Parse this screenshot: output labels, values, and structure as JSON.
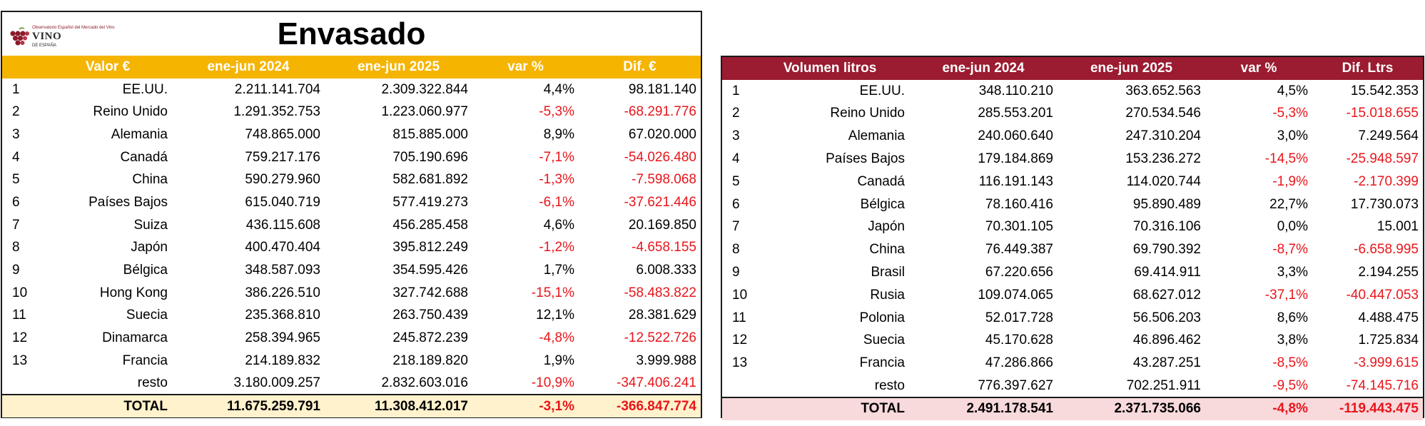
{
  "title": "Envasado",
  "logo": {
    "top_text": "Observatorio Español del Mercado del Vino",
    "main_text": "VINO",
    "sub_text": "DE ESPAÑA",
    "color": "#8a1c2b"
  },
  "colors": {
    "left_header": "#f5b400",
    "left_total": "#fff2cc",
    "right_header": "#9b1b30",
    "right_total": "#f8d9dc",
    "negative": "#e8161b"
  },
  "valor": {
    "headers": [
      "",
      "Valor €",
      "ene-jun 2024",
      "ene-jun 2025",
      "var %",
      "Dif. €"
    ],
    "rows": [
      {
        "rank": "1",
        "name": "EE.UU.",
        "y2024": "2.211.141.704",
        "y2025": "2.309.322.844",
        "var": "4,4%",
        "dif": "98.181.140",
        "neg": false
      },
      {
        "rank": "2",
        "name": "Reino Unido",
        "y2024": "1.291.352.753",
        "y2025": "1.223.060.977",
        "var": "-5,3%",
        "dif": "-68.291.776",
        "neg": true
      },
      {
        "rank": "3",
        "name": "Alemania",
        "y2024": "748.865.000",
        "y2025": "815.885.000",
        "var": "8,9%",
        "dif": "67.020.000",
        "neg": false
      },
      {
        "rank": "4",
        "name": "Canadá",
        "y2024": "759.217.176",
        "y2025": "705.190.696",
        "var": "-7,1%",
        "dif": "-54.026.480",
        "neg": true
      },
      {
        "rank": "5",
        "name": "China",
        "y2024": "590.279.960",
        "y2025": "582.681.892",
        "var": "-1,3%",
        "dif": "-7.598.068",
        "neg": true
      },
      {
        "rank": "6",
        "name": "Países Bajos",
        "y2024": "615.040.719",
        "y2025": "577.419.273",
        "var": "-6,1%",
        "dif": "-37.621.446",
        "neg": true
      },
      {
        "rank": "7",
        "name": "Suiza",
        "y2024": "436.115.608",
        "y2025": "456.285.458",
        "var": "4,6%",
        "dif": "20.169.850",
        "neg": false
      },
      {
        "rank": "8",
        "name": "Japón",
        "y2024": "400.470.404",
        "y2025": "395.812.249",
        "var": "-1,2%",
        "dif": "-4.658.155",
        "neg": true
      },
      {
        "rank": "9",
        "name": "Bélgica",
        "y2024": "348.587.093",
        "y2025": "354.595.426",
        "var": "1,7%",
        "dif": "6.008.333",
        "neg": false
      },
      {
        "rank": "10",
        "name": "Hong Kong",
        "y2024": "386.226.510",
        "y2025": "327.742.688",
        "var": "-15,1%",
        "dif": "-58.483.822",
        "neg": true
      },
      {
        "rank": "11",
        "name": "Suecia",
        "y2024": "235.368.810",
        "y2025": "263.750.439",
        "var": "12,1%",
        "dif": "28.381.629",
        "neg": false
      },
      {
        "rank": "12",
        "name": "Dinamarca",
        "y2024": "258.394.965",
        "y2025": "245.872.239",
        "var": "-4,8%",
        "dif": "-12.522.726",
        "neg": true
      },
      {
        "rank": "13",
        "name": "Francia",
        "y2024": "214.189.832",
        "y2025": "218.189.820",
        "var": "1,9%",
        "dif": "3.999.988",
        "neg": false
      },
      {
        "rank": "",
        "name": "resto",
        "y2024": "3.180.009.257",
        "y2025": "2.832.603.016",
        "var": "-10,9%",
        "dif": "-347.406.241",
        "neg": true
      }
    ],
    "total": {
      "label": "TOTAL",
      "y2024": "11.675.259.791",
      "y2025": "11.308.412.017",
      "var": "-3,1%",
      "dif": "-366.847.774"
    }
  },
  "volumen": {
    "headers": [
      "",
      "Volumen litros",
      "ene-jun 2024",
      "ene-jun 2025",
      "var %",
      "Dif. Ltrs"
    ],
    "rows": [
      {
        "rank": "1",
        "name": "EE.UU.",
        "y2024": "348.110.210",
        "y2025": "363.652.563",
        "var": "4,5%",
        "dif": "15.542.353",
        "neg": false
      },
      {
        "rank": "2",
        "name": "Reino Unido",
        "y2024": "285.553.201",
        "y2025": "270.534.546",
        "var": "-5,3%",
        "dif": "-15.018.655",
        "neg": true
      },
      {
        "rank": "3",
        "name": "Alemania",
        "y2024": "240.060.640",
        "y2025": "247.310.204",
        "var": "3,0%",
        "dif": "7.249.564",
        "neg": false
      },
      {
        "rank": "4",
        "name": "Países Bajos",
        "y2024": "179.184.869",
        "y2025": "153.236.272",
        "var": "-14,5%",
        "dif": "-25.948.597",
        "neg": true
      },
      {
        "rank": "5",
        "name": "Canadá",
        "y2024": "116.191.143",
        "y2025": "114.020.744",
        "var": "-1,9%",
        "dif": "-2.170.399",
        "neg": true
      },
      {
        "rank": "6",
        "name": "Bélgica",
        "y2024": "78.160.416",
        "y2025": "95.890.489",
        "var": "22,7%",
        "dif": "17.730.073",
        "neg": false
      },
      {
        "rank": "7",
        "name": "Japón",
        "y2024": "70.301.105",
        "y2025": "70.316.106",
        "var": "0,0%",
        "dif": "15.001",
        "neg": false
      },
      {
        "rank": "8",
        "name": "China",
        "y2024": "76.449.387",
        "y2025": "69.790.392",
        "var": "-8,7%",
        "dif": "-6.658.995",
        "neg": true
      },
      {
        "rank": "9",
        "name": "Brasil",
        "y2024": "67.220.656",
        "y2025": "69.414.911",
        "var": "3,3%",
        "dif": "2.194.255",
        "neg": false
      },
      {
        "rank": "10",
        "name": "Rusia",
        "y2024": "109.074.065",
        "y2025": "68.627.012",
        "var": "-37,1%",
        "dif": "-40.447.053",
        "neg": true
      },
      {
        "rank": "11",
        "name": "Polonia",
        "y2024": "52.017.728",
        "y2025": "56.506.203",
        "var": "8,6%",
        "dif": "4.488.475",
        "neg": false
      },
      {
        "rank": "12",
        "name": "Suecia",
        "y2024": "45.170.628",
        "y2025": "46.896.462",
        "var": "3,8%",
        "dif": "1.725.834",
        "neg": false
      },
      {
        "rank": "13",
        "name": "Francia",
        "y2024": "47.286.866",
        "y2025": "43.287.251",
        "var": "-8,5%",
        "dif": "-3.999.615",
        "neg": true
      },
      {
        "rank": "",
        "name": "resto",
        "y2024": "776.397.627",
        "y2025": "702.251.911",
        "var": "-9,5%",
        "dif": "-74.145.716",
        "neg": true
      }
    ],
    "total": {
      "label": "TOTAL",
      "y2024": "2.491.178.541",
      "y2025": "2.371.735.066",
      "var": "-4,8%",
      "dif": "-119.443.475"
    }
  }
}
